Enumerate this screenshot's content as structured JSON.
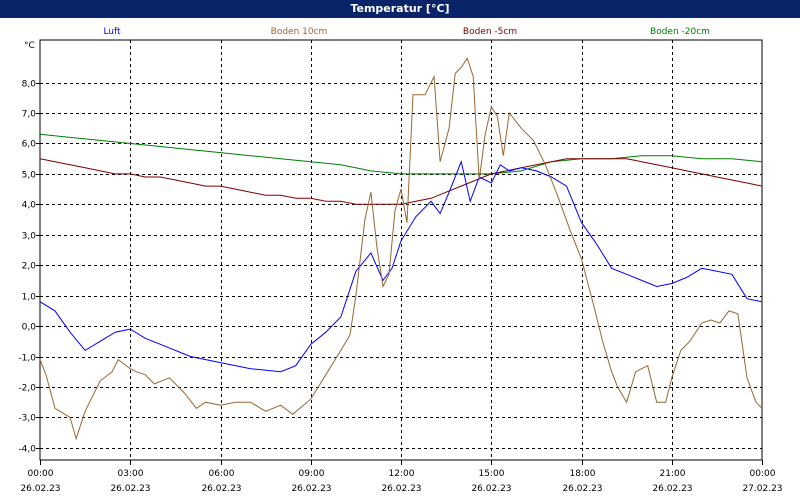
{
  "window": {
    "title": "Temperatur [°C]"
  },
  "colors": {
    "Luft": "#0000ff",
    "Boden 10cm": "#996633",
    "Boden -5cm": "#800000",
    "Boden -20cm": "#008000",
    "grid": "#000000",
    "titlebar": "#0a246a"
  },
  "chart_data": {
    "type": "line",
    "title": "Temperatur [°C]",
    "ylabel": "°C",
    "ylim": [
      -4.4,
      9.4
    ],
    "y_ticks": [
      "8,0",
      "7,0",
      "6,0",
      "5,0",
      "4,0",
      "3,0",
      "2,0",
      "1,0",
      "0,0",
      "-1,0",
      "-2,0",
      "-3,0",
      "-4,0"
    ],
    "x_ticks": [
      {
        "time": "00:00",
        "date": "26.02.23"
      },
      {
        "time": "03:00",
        "date": "26.02.23"
      },
      {
        "time": "06:00",
        "date": "26.02.23"
      },
      {
        "time": "09:00",
        "date": "26.02.23"
      },
      {
        "time": "12:00",
        "date": "26.02.23"
      },
      {
        "time": "15:00",
        "date": "26.02.23"
      },
      {
        "time": "18:00",
        "date": "26.02.23"
      },
      {
        "time": "21:00",
        "date": "26.02.23"
      },
      {
        "time": "00:00",
        "date": "27.02.23"
      }
    ],
    "grid": true,
    "legend_position": "top",
    "series": [
      {
        "name": "Luft",
        "color": "#0000ff",
        "points": [
          [
            0,
            0.8
          ],
          [
            0.5,
            0.5
          ],
          [
            1,
            -0.2
          ],
          [
            1.5,
            -0.8
          ],
          [
            2,
            -0.5
          ],
          [
            2.5,
            -0.2
          ],
          [
            3,
            -0.1
          ],
          [
            3.5,
            -0.4
          ],
          [
            4,
            -0.6
          ],
          [
            5,
            -1.0
          ],
          [
            6,
            -1.2
          ],
          [
            7,
            -1.4
          ],
          [
            8,
            -1.5
          ],
          [
            8.5,
            -1.3
          ],
          [
            9,
            -0.6
          ],
          [
            9.5,
            -0.2
          ],
          [
            10,
            0.3
          ],
          [
            10.5,
            1.8
          ],
          [
            11,
            2.4
          ],
          [
            11.4,
            1.5
          ],
          [
            11.7,
            1.9
          ],
          [
            12,
            2.8
          ],
          [
            12.5,
            3.6
          ],
          [
            13,
            4.1
          ],
          [
            13.3,
            3.7
          ],
          [
            13.6,
            4.4
          ],
          [
            14,
            5.4
          ],
          [
            14.3,
            4.1
          ],
          [
            14.6,
            4.9
          ],
          [
            15,
            4.7
          ],
          [
            15.3,
            5.3
          ],
          [
            15.6,
            5.1
          ],
          [
            16,
            5.2
          ],
          [
            16.5,
            5.1
          ],
          [
            17,
            4.9
          ],
          [
            17.5,
            4.6
          ],
          [
            18,
            3.4
          ],
          [
            18.5,
            2.7
          ],
          [
            19,
            1.9
          ],
          [
            19.5,
            1.7
          ],
          [
            20,
            1.5
          ],
          [
            20.5,
            1.3
          ],
          [
            21,
            1.4
          ],
          [
            21.5,
            1.6
          ],
          [
            22,
            1.9
          ],
          [
            22.5,
            1.8
          ],
          [
            23,
            1.7
          ],
          [
            23.5,
            0.9
          ],
          [
            24,
            0.8
          ]
        ]
      },
      {
        "name": "Boden 10cm",
        "color": "#996633",
        "points": [
          [
            0,
            -1.1
          ],
          [
            0.2,
            -1.6
          ],
          [
            0.5,
            -2.7
          ],
          [
            1,
            -3.0
          ],
          [
            1.2,
            -3.7
          ],
          [
            1.5,
            -2.8
          ],
          [
            2,
            -1.8
          ],
          [
            2.4,
            -1.5
          ],
          [
            2.6,
            -1.1
          ],
          [
            3,
            -1.4
          ],
          [
            3.2,
            -1.5
          ],
          [
            3.5,
            -1.6
          ],
          [
            3.8,
            -1.9
          ],
          [
            4.3,
            -1.7
          ],
          [
            4.8,
            -2.2
          ],
          [
            5.2,
            -2.7
          ],
          [
            5.5,
            -2.5
          ],
          [
            6,
            -2.6
          ],
          [
            6.5,
            -2.5
          ],
          [
            7,
            -2.5
          ],
          [
            7.5,
            -2.8
          ],
          [
            8,
            -2.6
          ],
          [
            8.4,
            -2.9
          ],
          [
            9,
            -2.4
          ],
          [
            9.5,
            -1.6
          ],
          [
            10,
            -0.8
          ],
          [
            10.3,
            -0.3
          ],
          [
            10.5,
            1.0
          ],
          [
            10.8,
            3.5
          ],
          [
            11,
            4.4
          ],
          [
            11.2,
            2.6
          ],
          [
            11.4,
            1.3
          ],
          [
            11.6,
            1.7
          ],
          [
            11.8,
            3.8
          ],
          [
            12,
            4.5
          ],
          [
            12.2,
            3.4
          ],
          [
            12.4,
            7.6
          ],
          [
            12.8,
            7.6
          ],
          [
            13.1,
            8.2
          ],
          [
            13.3,
            5.4
          ],
          [
            13.6,
            6.5
          ],
          [
            13.8,
            8.3
          ],
          [
            14,
            8.5
          ],
          [
            14.2,
            8.8
          ],
          [
            14.4,
            8.2
          ],
          [
            14.6,
            4.8
          ],
          [
            14.8,
            6.3
          ],
          [
            15,
            7.2
          ],
          [
            15.2,
            6.9
          ],
          [
            15.4,
            5.6
          ],
          [
            15.6,
            7.0
          ],
          [
            16,
            6.5
          ],
          [
            16.4,
            6.1
          ],
          [
            16.8,
            5.3
          ],
          [
            17.2,
            4.3
          ],
          [
            17.6,
            3.2
          ],
          [
            18,
            2.2
          ],
          [
            18.4,
            0.7
          ],
          [
            18.7,
            -0.5
          ],
          [
            19,
            -1.5
          ],
          [
            19.2,
            -2.0
          ],
          [
            19.5,
            -2.5
          ],
          [
            19.8,
            -1.5
          ],
          [
            20.2,
            -1.3
          ],
          [
            20.5,
            -2.5
          ],
          [
            20.8,
            -2.5
          ],
          [
            21,
            -1.7
          ],
          [
            21.3,
            -0.8
          ],
          [
            21.6,
            -0.5
          ],
          [
            22,
            0.1
          ],
          [
            22.3,
            0.2
          ],
          [
            22.6,
            0.1
          ],
          [
            22.9,
            0.5
          ],
          [
            23.2,
            0.4
          ],
          [
            23.5,
            -1.7
          ],
          [
            23.8,
            -2.5
          ],
          [
            24,
            -2.7
          ]
        ]
      },
      {
        "name": "Boden -5cm",
        "color": "#800000",
        "points": [
          [
            0,
            5.5
          ],
          [
            0.5,
            5.4
          ],
          [
            1,
            5.3
          ],
          [
            1.5,
            5.2
          ],
          [
            2,
            5.1
          ],
          [
            2.5,
            5.0
          ],
          [
            3,
            5.0
          ],
          [
            3.5,
            4.9
          ],
          [
            4,
            4.9
          ],
          [
            4.5,
            4.8
          ],
          [
            5,
            4.7
          ],
          [
            5.5,
            4.6
          ],
          [
            6,
            4.6
          ],
          [
            6.5,
            4.5
          ],
          [
            7,
            4.4
          ],
          [
            7.5,
            4.3
          ],
          [
            8,
            4.3
          ],
          [
            8.5,
            4.2
          ],
          [
            9,
            4.2
          ],
          [
            9.5,
            4.1
          ],
          [
            10,
            4.1
          ],
          [
            10.5,
            4.0
          ],
          [
            11,
            4.0
          ],
          [
            11.5,
            4.0
          ],
          [
            12,
            4.0
          ],
          [
            12.5,
            4.1
          ],
          [
            13,
            4.2
          ],
          [
            13.5,
            4.4
          ],
          [
            14,
            4.6
          ],
          [
            14.5,
            4.8
          ],
          [
            15,
            5.0
          ],
          [
            15.5,
            5.1
          ],
          [
            16,
            5.2
          ],
          [
            16.5,
            5.3
          ],
          [
            17,
            5.4
          ],
          [
            17.5,
            5.5
          ],
          [
            18,
            5.5
          ],
          [
            18.5,
            5.5
          ],
          [
            19,
            5.5
          ],
          [
            19.5,
            5.5
          ],
          [
            20,
            5.4
          ],
          [
            20.5,
            5.3
          ],
          [
            21,
            5.2
          ],
          [
            21.5,
            5.1
          ],
          [
            22,
            5.0
          ],
          [
            22.5,
            4.9
          ],
          [
            23,
            4.8
          ],
          [
            23.5,
            4.7
          ],
          [
            24,
            4.6
          ]
        ]
      },
      {
        "name": "Boden -20cm",
        "color": "#008000",
        "points": [
          [
            0,
            6.3
          ],
          [
            1,
            6.2
          ],
          [
            2,
            6.1
          ],
          [
            3,
            6.0
          ],
          [
            4,
            5.9
          ],
          [
            5,
            5.8
          ],
          [
            6,
            5.7
          ],
          [
            7,
            5.6
          ],
          [
            8,
            5.5
          ],
          [
            9,
            5.4
          ],
          [
            10,
            5.3
          ],
          [
            11,
            5.1
          ],
          [
            12,
            5.0
          ],
          [
            13,
            5.0
          ],
          [
            14,
            5.0
          ],
          [
            15,
            5.0
          ],
          [
            16,
            5.1
          ],
          [
            17,
            5.4
          ],
          [
            18,
            5.5
          ],
          [
            19,
            5.5
          ],
          [
            20,
            5.6
          ],
          [
            21,
            5.6
          ],
          [
            22,
            5.5
          ],
          [
            23,
            5.5
          ],
          [
            24,
            5.4
          ]
        ]
      }
    ]
  }
}
